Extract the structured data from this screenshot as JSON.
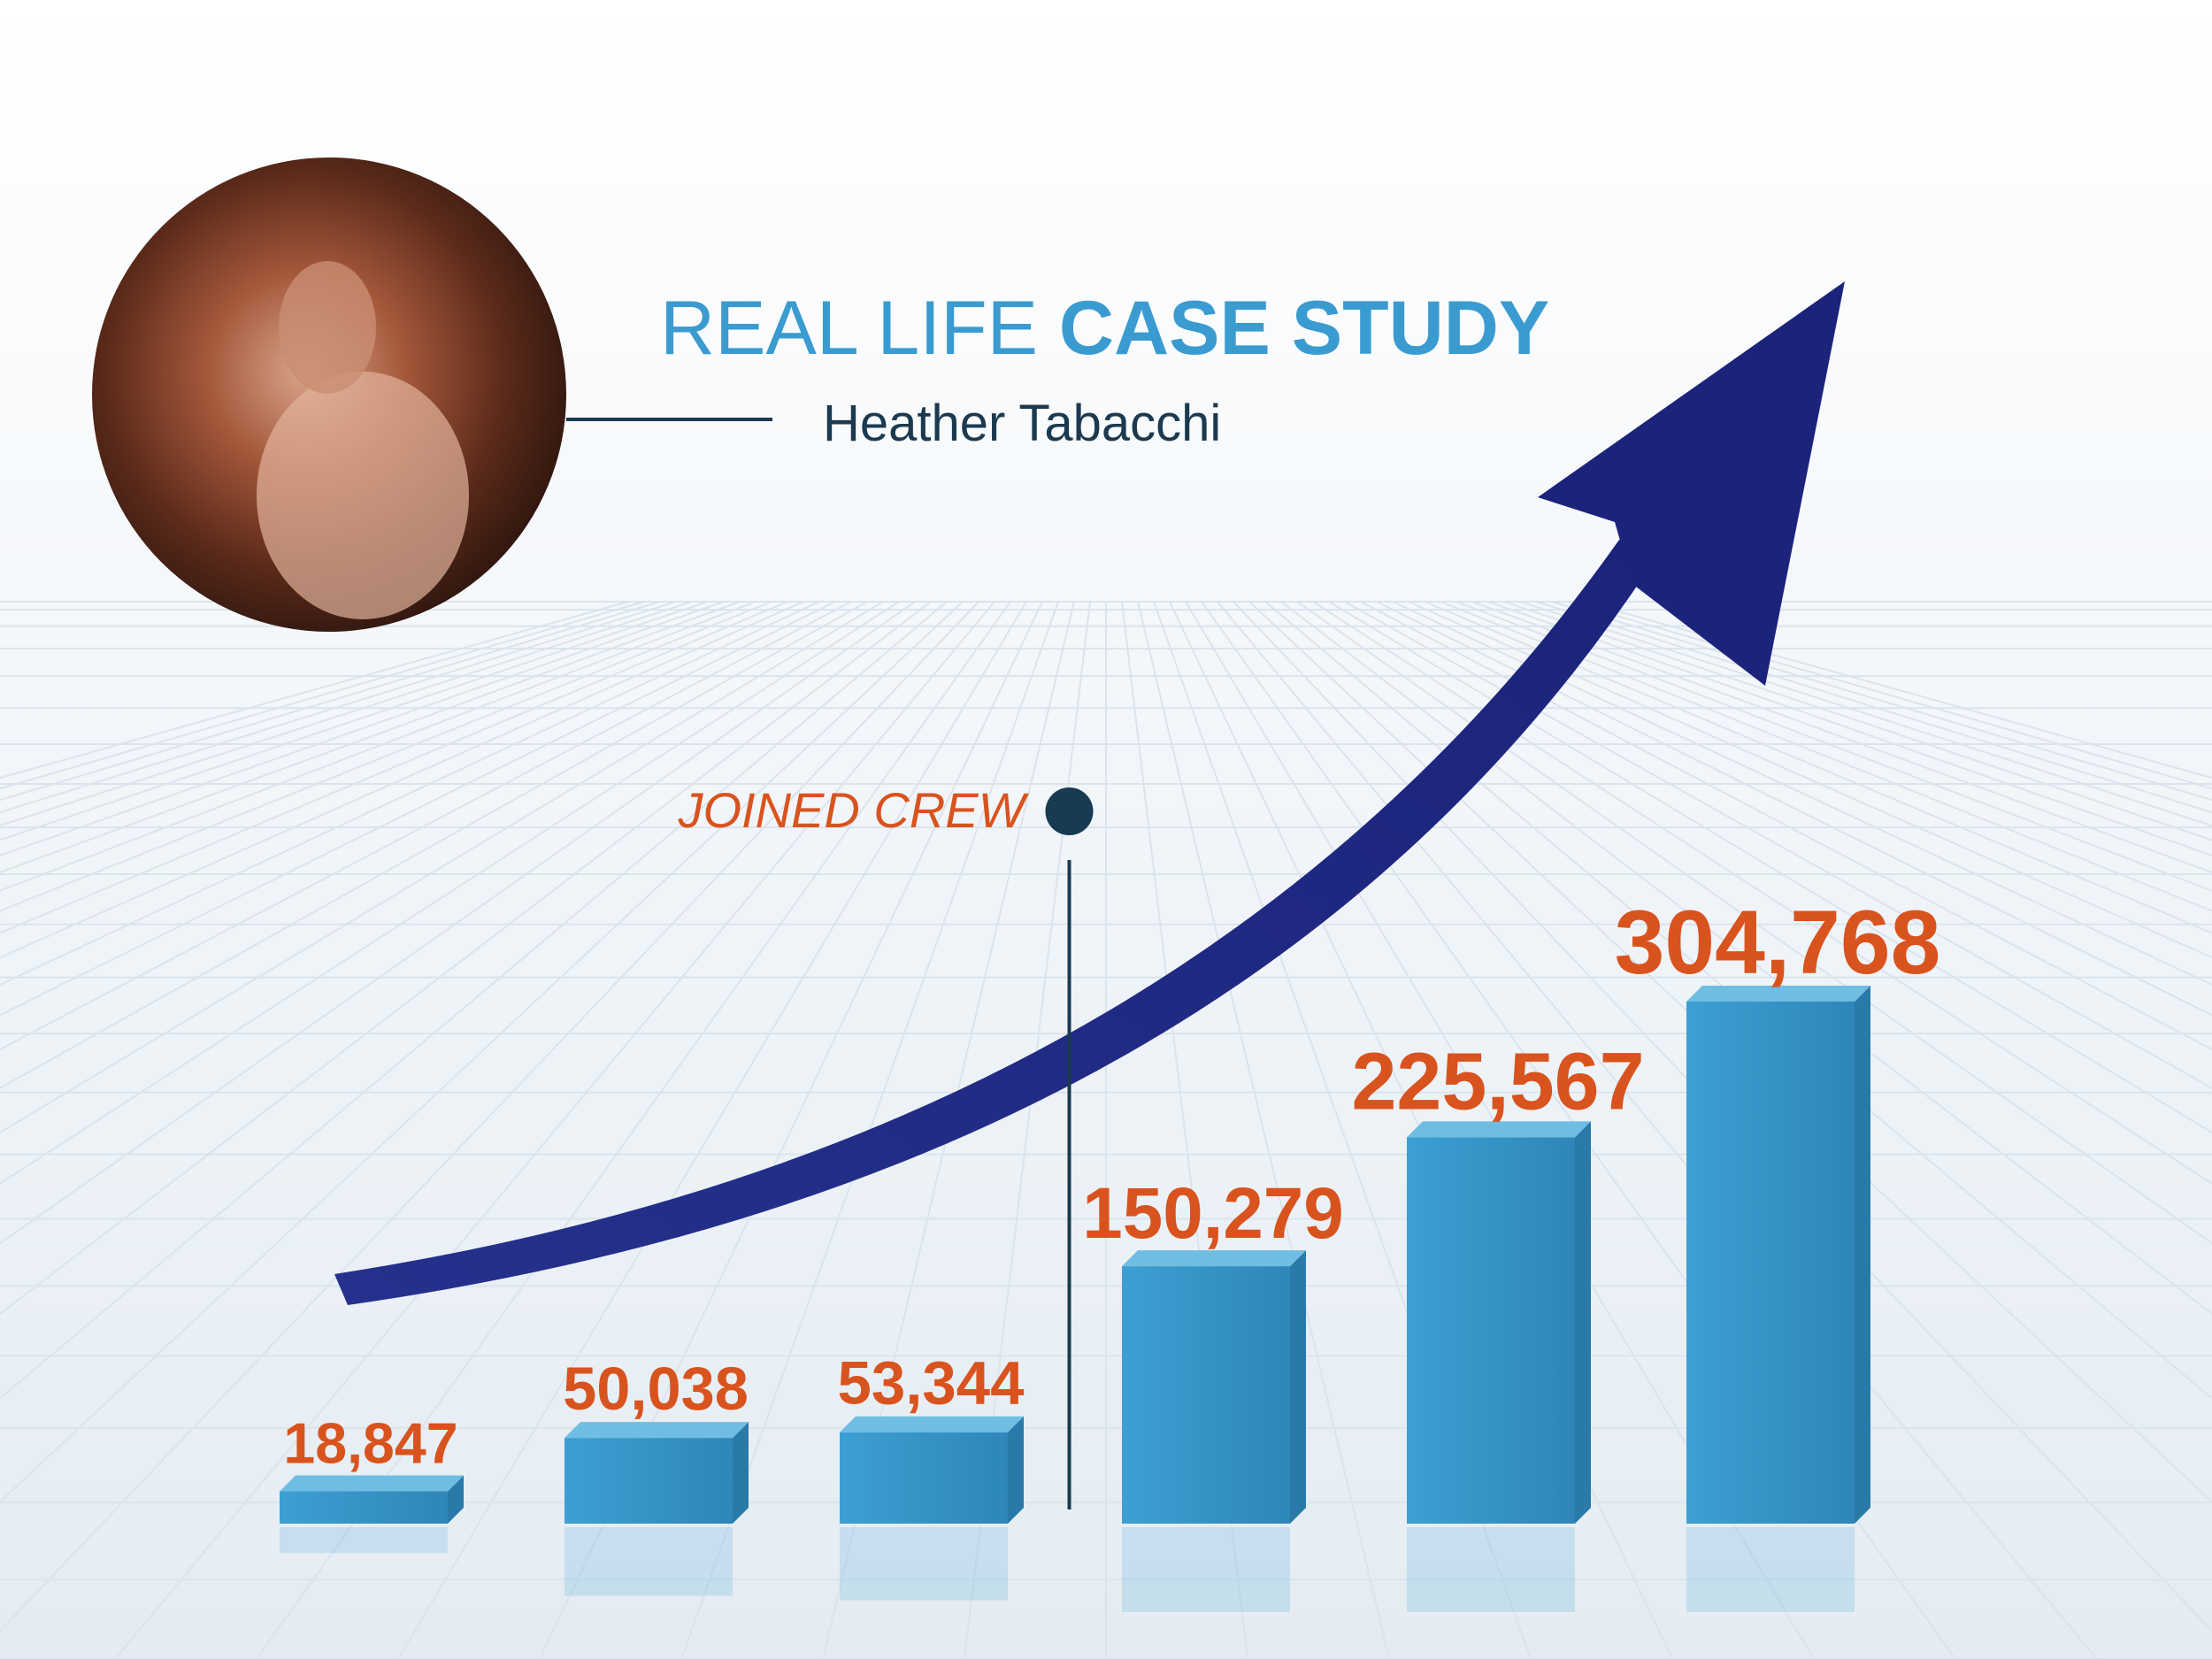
{
  "chart_data": {
    "type": "bar",
    "title_light": "REAL LIFE",
    "title_bold": "CASE STUDY",
    "subtitle": "Heather Tabacchi",
    "annotation": "JOINED CREW",
    "categories": [
      null,
      null,
      null,
      null,
      null,
      null
    ],
    "values": [
      18847,
      50038,
      53344,
      150279,
      225567,
      304768
    ],
    "value_labels": [
      "18,847",
      "50,038",
      "53,344",
      "150,279",
      "225,567",
      "304,768"
    ],
    "color": "#3a9bd0",
    "label_color": "#d9531e",
    "annotation_after_index": 2
  }
}
